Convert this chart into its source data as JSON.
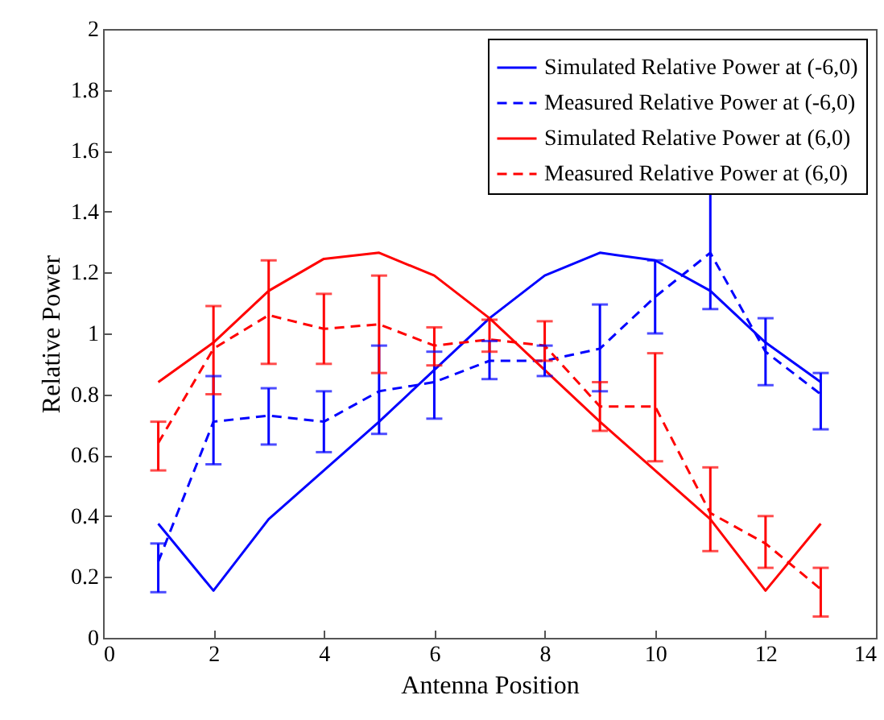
{
  "chart_data": {
    "type": "line",
    "xlabel": "Antenna Position",
    "ylabel": "Relative Power",
    "x": [
      1,
      2,
      3,
      4,
      5,
      6,
      7,
      8,
      9,
      10,
      11,
      12,
      13
    ],
    "xlim": [
      0,
      14
    ],
    "xticks": [
      0,
      2,
      4,
      6,
      8,
      10,
      12,
      14
    ],
    "ylim": [
      0,
      2
    ],
    "yticks": [
      0,
      0.2,
      0.4,
      0.6,
      0.8,
      1,
      1.2,
      1.4,
      1.6,
      1.8,
      2
    ],
    "grid": false,
    "legend": "top right",
    "marker": "none",
    "series": [
      {
        "name": "Simulated Relative Power at (-6,0)",
        "color": "#0000ff",
        "line_style": "solid",
        "values": [
          0.375,
          0.155,
          0.39,
          0.55,
          0.71,
          0.88,
          1.05,
          1.19,
          1.265,
          1.24,
          1.14,
          0.97,
          0.84
        ]
      },
      {
        "name": "Measured Relative Power at (-6,0)",
        "color": "#0000ff",
        "line_style": "dashed",
        "values": [
          0.25,
          0.71,
          0.73,
          0.71,
          0.81,
          0.84,
          0.91,
          0.91,
          0.95,
          1.12,
          1.265,
          0.94,
          0.8
        ],
        "errors": [
          [
            0.15,
            0.31
          ],
          [
            0.57,
            0.86
          ],
          [
            0.635,
            0.82
          ],
          [
            0.61,
            0.81
          ],
          [
            0.67,
            0.96
          ],
          [
            0.72,
            0.94
          ],
          [
            0.85,
            0.975
          ],
          [
            0.86,
            0.96
          ],
          [
            0.81,
            1.095
          ],
          [
            1.0,
            1.24
          ],
          [
            1.08,
            1.46
          ],
          [
            0.83,
            1.05
          ],
          [
            0.685,
            0.87
          ]
        ]
      },
      {
        "name": "Simulated Relative Power at (6,0)",
        "color": "#ff0000",
        "line_style": "solid",
        "values": [
          0.84,
          0.97,
          1.14,
          1.245,
          1.265,
          1.19,
          1.05,
          0.88,
          0.71,
          0.55,
          0.39,
          0.155,
          0.375
        ]
      },
      {
        "name": "Measured Relative Power at (6,0)",
        "color": "#ff0000",
        "line_style": "dashed",
        "values": [
          0.64,
          0.95,
          1.06,
          1.015,
          1.03,
          0.96,
          0.98,
          0.96,
          0.76,
          0.76,
          0.41,
          0.31,
          0.16
        ],
        "errors": [
          [
            0.55,
            0.71
          ],
          [
            0.8,
            1.09
          ],
          [
            0.9,
            1.24
          ],
          [
            0.9,
            1.13
          ],
          [
            0.87,
            1.19
          ],
          [
            0.895,
            1.02
          ],
          [
            0.94,
            1.045
          ],
          [
            0.91,
            1.04
          ],
          [
            0.68,
            0.84
          ],
          [
            0.58,
            0.935
          ],
          [
            0.285,
            0.56
          ],
          [
            0.23,
            0.4
          ],
          [
            0.07,
            0.23
          ]
        ]
      }
    ]
  }
}
